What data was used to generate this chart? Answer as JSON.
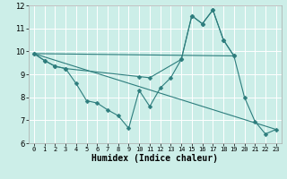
{
  "xlabel": "Humidex (Indice chaleur)",
  "xlim": [
    -0.5,
    23.5
  ],
  "ylim": [
    6,
    12
  ],
  "yticks": [
    6,
    7,
    8,
    9,
    10,
    11,
    12
  ],
  "xticks": [
    0,
    1,
    2,
    3,
    4,
    5,
    6,
    7,
    8,
    9,
    10,
    11,
    12,
    13,
    14,
    15,
    16,
    17,
    18,
    19,
    20,
    21,
    22,
    23
  ],
  "bg_color": "#cceee8",
  "line_color": "#2d7d7d",
  "grid_color": "#ffffff",
  "series1_x": [
    0,
    1,
    2,
    3,
    10,
    11,
    14,
    15,
    16,
    17,
    18,
    19
  ],
  "series1_y": [
    9.9,
    9.6,
    9.35,
    9.25,
    8.9,
    8.85,
    9.65,
    11.55,
    11.2,
    11.8,
    10.5,
    9.8
  ],
  "series2_x": [
    0,
    1,
    2,
    3,
    4,
    5,
    6,
    7,
    8,
    9,
    10,
    11,
    12,
    13,
    14,
    15,
    16,
    17,
    18,
    19,
    20,
    21,
    22,
    23
  ],
  "series2_y": [
    9.9,
    9.6,
    9.35,
    9.25,
    8.6,
    7.85,
    7.75,
    7.45,
    7.2,
    6.65,
    8.3,
    7.6,
    8.4,
    8.85,
    9.65,
    11.55,
    11.2,
    11.8,
    10.5,
    9.8,
    8.0,
    6.95,
    6.4,
    6.6
  ],
  "line1_x": [
    0,
    19
  ],
  "line1_y": [
    9.9,
    9.8
  ],
  "line2_x": [
    0,
    23
  ],
  "line2_y": [
    9.9,
    6.6
  ]
}
